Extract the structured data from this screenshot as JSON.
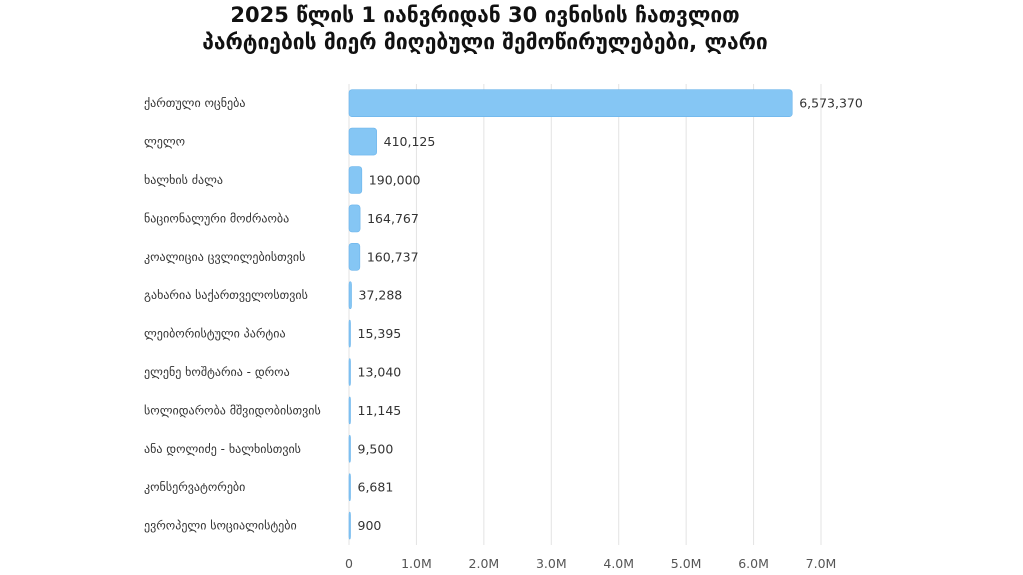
{
  "chart_data": {
    "type": "bar",
    "orientation": "horizontal",
    "title_lines": [
      "2025 წლის 1 იანვრიდან 30 ივნისის ჩათვლით",
      "პარტიების მიერ მიღებული შემოწირულებები, ლარი"
    ],
    "categories": [
      "ქართული ოცნება",
      "ლელო",
      "ხალხის ძალა",
      "ნაციონალური მოძრაობა",
      "კოალიცია ცვლილებისთვის",
      "გახარია საქართველოსთვის",
      "ლეიბორისტული პარტია",
      "ელენე ხოშტარია - დროა",
      "სოლიდარობა მშვიდობისთვის",
      "ანა დოლიძე - ხალხისთვის",
      "კონსერვატორები",
      "ევროპელი სოციალისტები"
    ],
    "values": [
      6573370,
      410125,
      190000,
      164767,
      160737,
      37288,
      15395,
      13040,
      11145,
      9500,
      6681,
      900
    ],
    "value_labels": [
      "6,573,370",
      "410,125",
      "190,000",
      "164,767",
      "160,737",
      "37,288",
      "15,395",
      "13,040",
      "11,145",
      "9,500",
      "6,681",
      "900"
    ],
    "x_ticks": [
      0,
      1000000,
      2000000,
      3000000,
      4000000,
      5000000,
      6000000,
      7000000
    ],
    "x_tick_labels": [
      "0",
      "1.0M",
      "2.0M",
      "3.0M",
      "4.0M",
      "5.0M",
      "6.0M",
      "7.0M"
    ],
    "xlim": [
      0,
      7000000
    ],
    "grid": "vertical",
    "colors": {
      "bar": "#85c6f4",
      "bar_border": "#6bb4eb",
      "grid": "#e3e3e3",
      "text": "#333333"
    }
  }
}
